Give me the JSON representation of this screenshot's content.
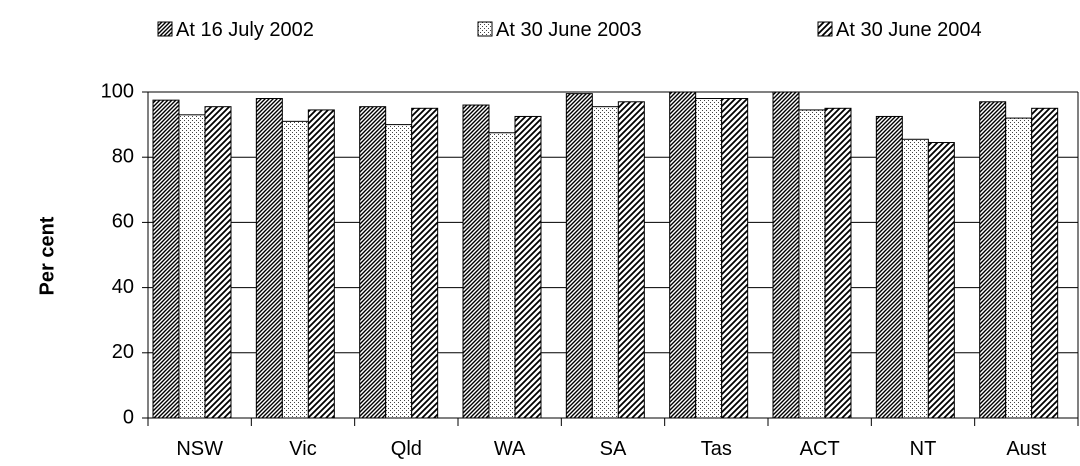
{
  "chart_data": {
    "type": "bar",
    "title": "",
    "xlabel": "",
    "ylabel": "Per cent",
    "ylim": [
      0,
      100
    ],
    "yticks": [
      0,
      20,
      40,
      60,
      80,
      100
    ],
    "grid": true,
    "legend_position": "top",
    "categories": [
      "NSW",
      "Vic",
      "Qld",
      "WA",
      "SA",
      "Tas",
      "ACT",
      "NT",
      "Aust"
    ],
    "series": [
      {
        "name": "At 16 July 2002",
        "pattern": "dense-diagonal",
        "values": [
          97.5,
          98,
          95.5,
          96,
          99.5,
          100,
          100,
          92.5,
          97
        ]
      },
      {
        "name": "At 30 June 2003",
        "pattern": "dots",
        "values": [
          93,
          91,
          90,
          87.5,
          95.5,
          98,
          94.5,
          85.5,
          92
        ]
      },
      {
        "name": "At 30 June 2004",
        "pattern": "diagonal",
        "values": [
          95.5,
          94.5,
          95,
          92.5,
          97,
          98,
          95,
          84.5,
          95
        ]
      }
    ]
  }
}
